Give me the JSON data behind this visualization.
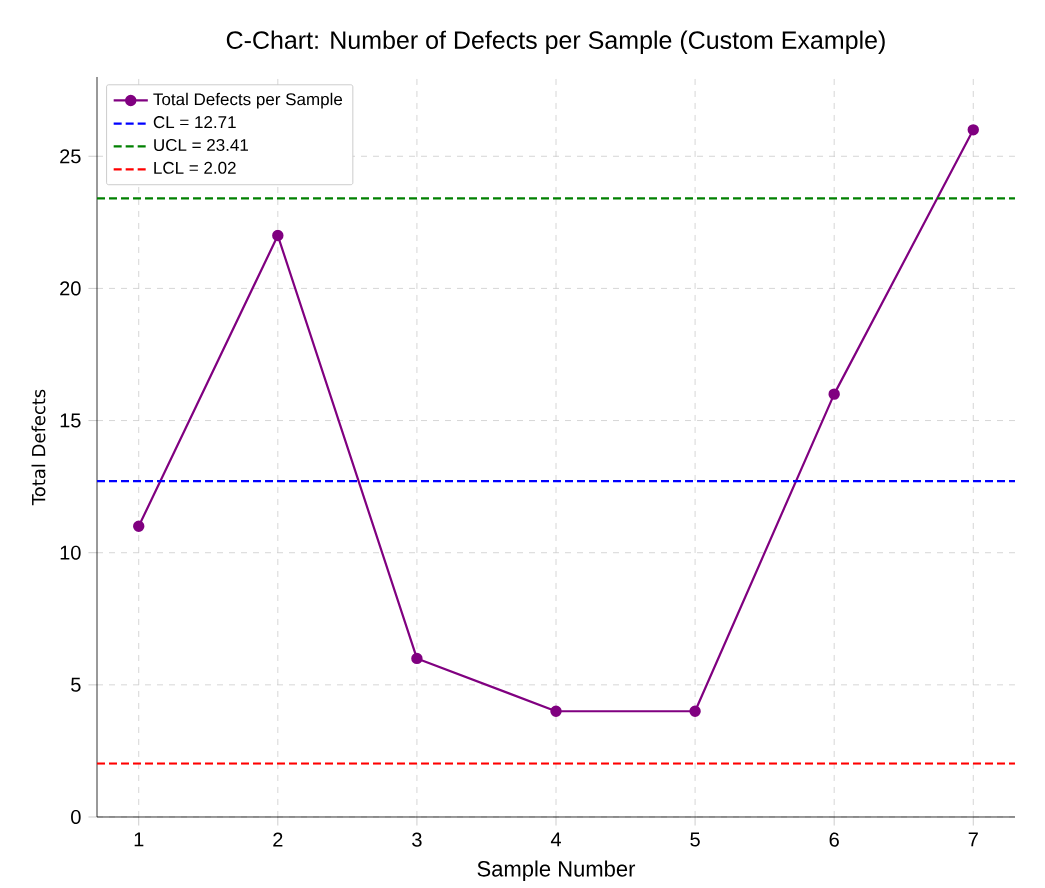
{
  "chart_data": {
    "type": "line",
    "title": "C-Chart: Number of Defects per Sample (Custom Example)",
    "xlabel": "Sample Number",
    "ylabel": "Total Defects",
    "x": [
      1,
      2,
      3,
      4,
      5,
      6,
      7
    ],
    "series": [
      {
        "name": "Total Defects per Sample",
        "color": "#800080",
        "values": [
          11,
          22,
          6,
          4,
          4,
          16,
          26
        ]
      }
    ],
    "ref_lines": [
      {
        "axis": "y",
        "value": 12.71,
        "label": "CL = 12.71",
        "color": "#0000ff",
        "line_style": "dashed"
      },
      {
        "axis": "y",
        "value": 23.41,
        "label": "UCL = 23.41",
        "color": "#008000",
        "line_style": "dashed"
      },
      {
        "axis": "y",
        "value": 2.02,
        "label": "LCL = 2.02",
        "color": "#ff0000",
        "line_style": "dashed"
      }
    ],
    "xlim": [
      0.7,
      7.3
    ],
    "ylim": [
      0,
      28
    ],
    "xticks": [
      1,
      2,
      3,
      4,
      5,
      6,
      7
    ],
    "yticks": [
      0,
      5,
      10,
      15,
      20,
      25
    ],
    "grid": true,
    "legend": "top left",
    "marker": "circle",
    "line_style": "solid"
  }
}
